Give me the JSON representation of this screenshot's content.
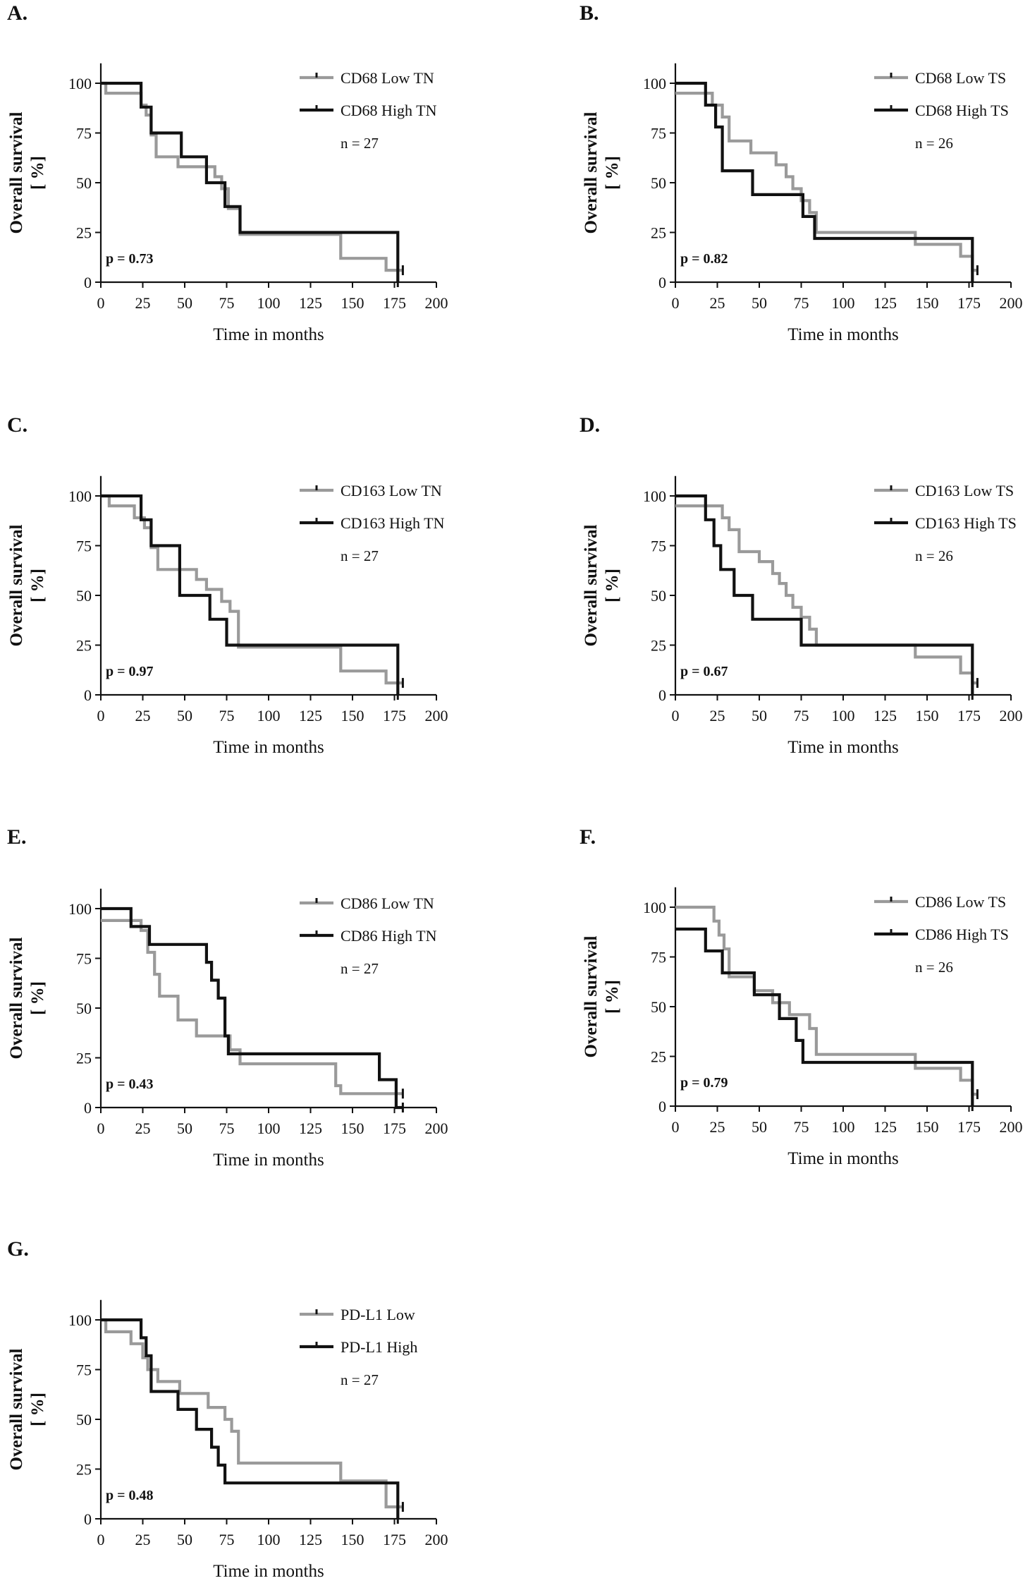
{
  "colors": {
    "low": "#9a9a9a",
    "high": "#111111",
    "axis": "#111111",
    "text": "#111111"
  },
  "common": {
    "ylabel_line1": "Overall survival",
    "ylabel_line2": "[ %]",
    "xlabel": "Time in months",
    "xticks": [
      0,
      25,
      50,
      75,
      100,
      125,
      150,
      175,
      200
    ],
    "yticks": [
      0,
      25,
      50,
      75,
      100
    ]
  },
  "chart_data": [
    {
      "type": "line",
      "panel": "A.",
      "xlabel": "Time in months",
      "ylabel": "Overall survival [ %]",
      "xlim": [
        0,
        200
      ],
      "ylim": [
        0,
        110
      ],
      "n_label": "n = 27",
      "p_label": "p = 0.73",
      "series": [
        {
          "name": "CD68 Low TN",
          "group": "low",
          "x": [
            0,
            3,
            24,
            27,
            30,
            33,
            46,
            57,
            68,
            72,
            76,
            83,
            128,
            143,
            170,
            180
          ],
          "y": [
            100,
            95,
            89,
            84,
            74,
            63,
            58,
            58,
            53,
            47,
            37,
            24,
            24,
            12,
            6,
            6
          ]
        },
        {
          "name": "CD68 High TN",
          "group": "high",
          "x": [
            0,
            24,
            30,
            48,
            63,
            74,
            80,
            83,
            177
          ],
          "y": [
            100,
            88,
            75,
            63,
            50,
            38,
            38,
            25,
            0
          ]
        }
      ]
    },
    {
      "type": "line",
      "panel": "B.",
      "xlabel": "Time in months",
      "ylabel": "Overall survival [ %]",
      "xlim": [
        0,
        200
      ],
      "ylim": [
        0,
        110
      ],
      "n_label": "n = 26",
      "p_label": "p = 0.82",
      "series": [
        {
          "name": "CD68 Low TS",
          "group": "low",
          "x": [
            0,
            22,
            28,
            32,
            45,
            56,
            60,
            66,
            70,
            75,
            80,
            84,
            138,
            143,
            170,
            177,
            180
          ],
          "y": [
            95,
            89,
            83,
            71,
            65,
            65,
            59,
            53,
            47,
            41,
            35,
            25,
            25,
            19,
            13,
            6,
            6
          ]
        },
        {
          "name": "CD68 High TS",
          "group": "high",
          "x": [
            0,
            18,
            24,
            28,
            46,
            68,
            76,
            83,
            177
          ],
          "y": [
            100,
            89,
            78,
            56,
            44,
            44,
            33,
            22,
            0
          ]
        }
      ]
    },
    {
      "type": "line",
      "panel": "C.",
      "xlabel": "Time in months",
      "ylabel": "Overall survival [ %]",
      "xlim": [
        0,
        200
      ],
      "ylim": [
        0,
        110
      ],
      "n_label": "n = 27",
      "p_label": "p = 0.97",
      "series": [
        {
          "name": "CD163 Low TN",
          "group": "low",
          "x": [
            0,
            5,
            20,
            26,
            30,
            34,
            46,
            57,
            63,
            72,
            77,
            82,
            128,
            143,
            170,
            180
          ],
          "y": [
            100,
            95,
            89,
            84,
            74,
            63,
            63,
            58,
            53,
            47,
            42,
            24,
            24,
            12,
            6,
            6
          ]
        },
        {
          "name": "CD163 High TN",
          "group": "high",
          "x": [
            0,
            24,
            30,
            47,
            65,
            75,
            177
          ],
          "y": [
            100,
            88,
            75,
            50,
            38,
            25,
            0
          ]
        }
      ]
    },
    {
      "type": "line",
      "panel": "D.",
      "xlabel": "Time in months",
      "ylabel": "Overall survival [ %]",
      "xlim": [
        0,
        200
      ],
      "ylim": [
        0,
        110
      ],
      "n_label": "n = 26",
      "p_label": "p = 0.67",
      "series": [
        {
          "name": "CD163 Low TS",
          "group": "low",
          "x": [
            0,
            28,
            32,
            38,
            50,
            58,
            62,
            66,
            70,
            75,
            80,
            84,
            138,
            143,
            170,
            177,
            180
          ],
          "y": [
            95,
            89,
            83,
            72,
            67,
            61,
            56,
            50,
            44,
            39,
            33,
            25,
            25,
            19,
            11,
            6,
            6
          ]
        },
        {
          "name": "CD163 High TS",
          "group": "high",
          "x": [
            0,
            18,
            23,
            27,
            35,
            46,
            75,
            177
          ],
          "y": [
            100,
            88,
            75,
            63,
            50,
            38,
            25,
            0
          ]
        }
      ]
    },
    {
      "type": "line",
      "panel": "E.",
      "xlabel": "Time in months",
      "ylabel": "Overall survival [ %]",
      "xlim": [
        0,
        200
      ],
      "ylim": [
        0,
        110
      ],
      "n_label": "n = 27",
      "p_label": "p = 0.43",
      "series": [
        {
          "name": "CD86 Low TN",
          "group": "low",
          "x": [
            0,
            24,
            28,
            32,
            35,
            46,
            57,
            77,
            83,
            140,
            143,
            180
          ],
          "y": [
            94,
            89,
            78,
            67,
            56,
            44,
            36,
            29,
            22,
            11,
            7,
            7
          ]
        },
        {
          "name": "CD86 High TN",
          "group": "high",
          "x": [
            0,
            18,
            29,
            63,
            66,
            70,
            74,
            76,
            83,
            166,
            176,
            180
          ],
          "y": [
            100,
            91,
            82,
            73,
            64,
            55,
            36,
            27,
            27,
            14,
            0,
            0
          ]
        }
      ]
    },
    {
      "type": "line",
      "panel": "F.",
      "xlabel": "Time in months",
      "ylabel": "Overall survival [ %]",
      "xlim": [
        0,
        200
      ],
      "ylim": [
        0,
        110
      ],
      "n_label": "n = 26",
      "p_label": "p = 0.79",
      "series": [
        {
          "name": "CD86 Low TS",
          "group": "low",
          "x": [
            0,
            23,
            26,
            29,
            32,
            47,
            58,
            68,
            80,
            84,
            138,
            143,
            170,
            177,
            180
          ],
          "y": [
            100,
            93,
            86,
            79,
            65,
            58,
            52,
            46,
            39,
            26,
            26,
            19,
            13,
            6,
            6
          ]
        },
        {
          "name": "CD86 High TS",
          "group": "high",
          "x": [
            0,
            18,
            28,
            47,
            62,
            72,
            76,
            177
          ],
          "y": [
            89,
            78,
            67,
            56,
            44,
            33,
            22,
            0
          ]
        }
      ]
    },
    {
      "type": "line",
      "panel": "G.",
      "xlabel": "Time in months",
      "ylabel": "Overall survival [ %]",
      "xlim": [
        0,
        200
      ],
      "ylim": [
        0,
        110
      ],
      "n_label": "n = 27",
      "p_label": "p = 0.48",
      "series": [
        {
          "name": "PD-L1 Low",
          "group": "low",
          "x": [
            0,
            3,
            18,
            25,
            28,
            34,
            47,
            64,
            74,
            78,
            82,
            138,
            143,
            170,
            180
          ],
          "y": [
            100,
            94,
            88,
            81,
            75,
            69,
            63,
            56,
            50,
            44,
            28,
            28,
            19,
            6,
            6
          ]
        },
        {
          "name": "PD-L1 High",
          "group": "high",
          "x": [
            0,
            24,
            27,
            30,
            46,
            57,
            66,
            70,
            74,
            177
          ],
          "y": [
            100,
            91,
            82,
            64,
            55,
            45,
            36,
            27,
            18,
            0
          ]
        }
      ]
    }
  ]
}
